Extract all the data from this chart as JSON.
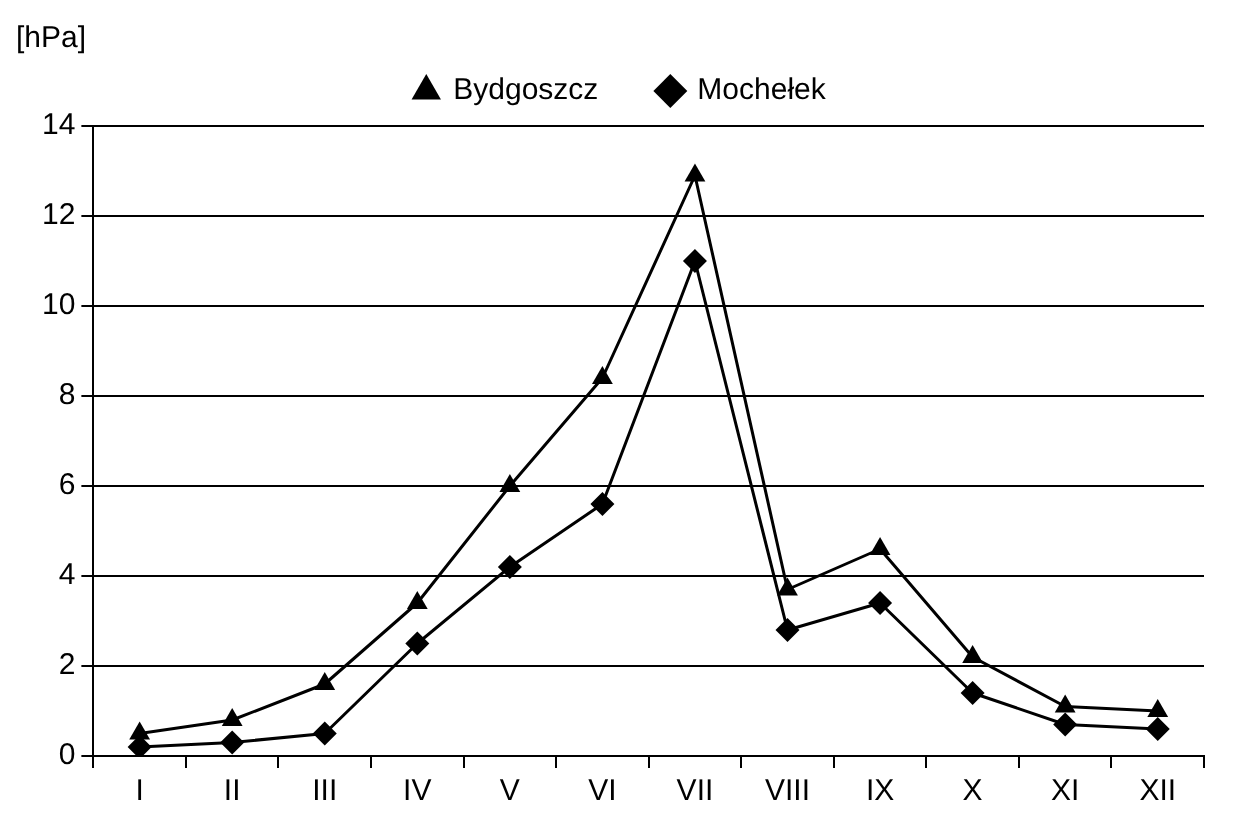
{
  "chart_data": {
    "type": "line",
    "ylabel": "[hPa]",
    "categories": [
      "I",
      "II",
      "III",
      "IV",
      "V",
      "VI",
      "VII",
      "VIII",
      "IX",
      "X",
      "XI",
      "XII"
    ],
    "series": [
      {
        "name": "Bydgoszcz",
        "color": "#000000",
        "marker": "triangle",
        "values": [
          0.5,
          0.8,
          1.6,
          3.4,
          6.0,
          8.4,
          12.9,
          3.7,
          4.6,
          2.2,
          1.1,
          1.0
        ]
      },
      {
        "name": "Mochełek",
        "color": "#000000",
        "marker": "diamond",
        "values": [
          0.2,
          0.3,
          0.5,
          2.5,
          4.2,
          5.6,
          11,
          2.8,
          3.4,
          1.4,
          0.7,
          0.6
        ]
      }
    ],
    "ylim": [
      0,
      14
    ],
    "yticks": [
      0,
      2,
      4,
      6,
      8,
      10,
      12,
      14
    ],
    "grid": "y",
    "legend": "top",
    "line_style": "solid"
  }
}
